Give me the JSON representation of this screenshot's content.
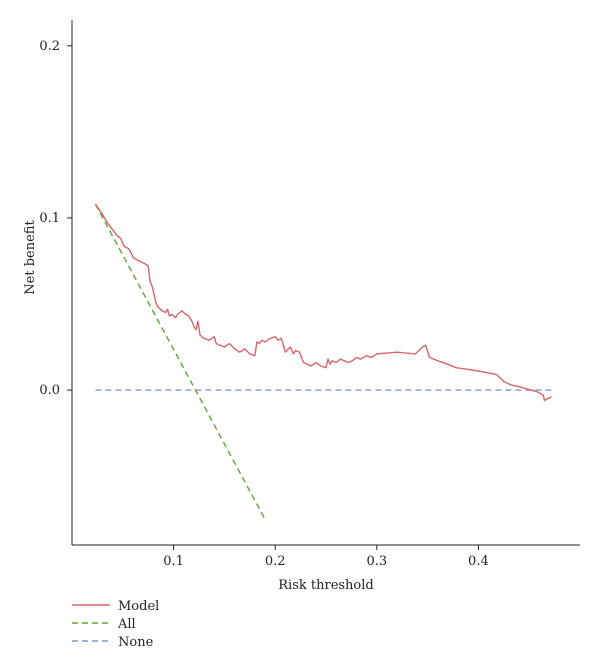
{
  "chart_data": {
    "type": "line",
    "xlabel": "Risk threshold",
    "ylabel": "Net benefit",
    "xlim": [
      0.0,
      0.5
    ],
    "ylim": [
      -0.09,
      0.215
    ],
    "x_ticks": [
      0.1,
      0.2,
      0.3,
      0.4
    ],
    "x_tick_labels": [
      "0.1",
      "0.2",
      "0.3",
      "0.4"
    ],
    "y_ticks": [
      0.0,
      0.1,
      0.2
    ],
    "y_tick_labels": [
      "0.0",
      "0.1",
      "0.2"
    ],
    "grid": false,
    "legend_position": "bottom-left",
    "series": [
      {
        "name": "Model",
        "color": "#d9646a",
        "dash": "solid",
        "x": [
          0.023,
          0.03,
          0.034,
          0.039,
          0.044,
          0.048,
          0.051,
          0.053,
          0.056,
          0.058,
          0.06,
          0.063,
          0.066,
          0.07,
          0.073,
          0.075,
          0.077,
          0.079,
          0.081,
          0.083,
          0.085,
          0.087,
          0.089,
          0.092,
          0.094,
          0.096,
          0.098,
          0.1,
          0.102,
          0.104,
          0.106,
          0.108,
          0.11,
          0.112,
          0.115,
          0.118,
          0.12,
          0.122,
          0.124,
          0.126,
          0.128,
          0.13,
          0.135,
          0.14,
          0.142,
          0.146,
          0.15,
          0.155,
          0.16,
          0.165,
          0.17,
          0.175,
          0.18,
          0.182,
          0.184,
          0.187,
          0.19,
          0.195,
          0.2,
          0.203,
          0.206,
          0.21,
          0.215,
          0.218,
          0.22,
          0.224,
          0.228,
          0.232,
          0.235,
          0.238,
          0.24,
          0.245,
          0.25,
          0.252,
          0.254,
          0.256,
          0.26,
          0.264,
          0.268,
          0.272,
          0.276,
          0.28,
          0.284,
          0.29,
          0.295,
          0.3,
          0.32,
          0.338,
          0.345,
          0.348,
          0.352,
          0.36,
          0.37,
          0.378,
          0.39,
          0.4,
          0.41,
          0.418,
          0.425,
          0.432,
          0.44,
          0.446,
          0.452,
          0.458,
          0.464,
          0.465,
          0.468,
          0.472
        ],
        "y": [
          0.108,
          0.102,
          0.098,
          0.094,
          0.09,
          0.088,
          0.084,
          0.083,
          0.082,
          0.08,
          0.077,
          0.076,
          0.075,
          0.074,
          0.073,
          0.072,
          0.063,
          0.06,
          0.055,
          0.05,
          0.048,
          0.047,
          0.046,
          0.045,
          0.047,
          0.043,
          0.044,
          0.043,
          0.042,
          0.044,
          0.045,
          0.046,
          0.045,
          0.044,
          0.043,
          0.04,
          0.037,
          0.035,
          0.04,
          0.032,
          0.031,
          0.03,
          0.029,
          0.031,
          0.027,
          0.026,
          0.025,
          0.027,
          0.024,
          0.022,
          0.024,
          0.021,
          0.02,
          0.028,
          0.027,
          0.029,
          0.028,
          0.03,
          0.031,
          0.029,
          0.03,
          0.022,
          0.025,
          0.021,
          0.023,
          0.022,
          0.016,
          0.015,
          0.014,
          0.015,
          0.016,
          0.014,
          0.013,
          0.018,
          0.015,
          0.017,
          0.016,
          0.018,
          0.017,
          0.016,
          0.017,
          0.019,
          0.018,
          0.02,
          0.019,
          0.021,
          0.022,
          0.021,
          0.025,
          0.026,
          0.019,
          0.017,
          0.015,
          0.013,
          0.012,
          0.011,
          0.01,
          0.009,
          0.005,
          0.003,
          0.002,
          0.001,
          0.0,
          -0.001,
          -0.003,
          -0.006,
          -0.005,
          -0.004
        ]
      },
      {
        "name": "All",
        "color": "#5ea52f",
        "dash": "dashed",
        "x": [
          0.023,
          0.19
        ],
        "y": [
          0.108,
          -0.075
        ]
      },
      {
        "name": "None",
        "color": "#7f9cc6",
        "dash": "dashed",
        "x": [
          0.023,
          0.472
        ],
        "y": [
          0.0,
          0.0
        ]
      }
    ]
  }
}
